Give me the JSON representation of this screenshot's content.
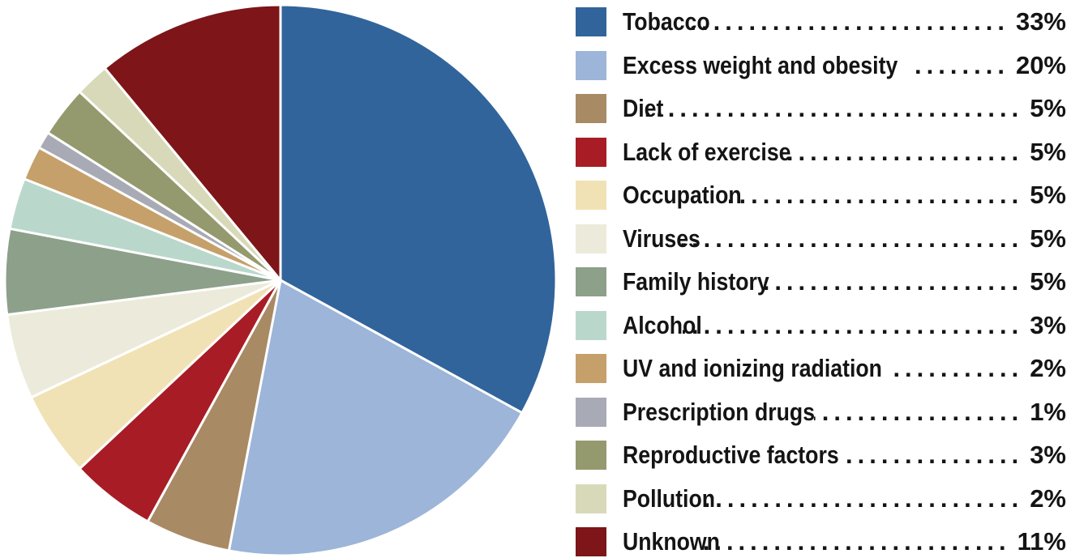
{
  "chart_data": {
    "type": "pie",
    "title": "",
    "legend_position": "right",
    "slices": [
      {
        "label": "Tobacco",
        "value": 33,
        "display": "33%",
        "color": "#31649b"
      },
      {
        "label": "Excess weight and obesity",
        "value": 20,
        "display": "20%",
        "color": "#9cb5d8"
      },
      {
        "label": "Diet",
        "value": 5,
        "display": "5%",
        "color": "#a88a64"
      },
      {
        "label": "Lack of exercise",
        "value": 5,
        "display": "5%",
        "color": "#a81c26"
      },
      {
        "label": "Occupation",
        "value": 5,
        "display": "5%",
        "color": "#f1e2b5"
      },
      {
        "label": "Viruses",
        "value": 5,
        "display": "5%",
        "color": "#ecebdb"
      },
      {
        "label": "Family history",
        "value": 5,
        "display": "5%",
        "color": "#8da08a"
      },
      {
        "label": "Alcohol",
        "value": 3,
        "display": "3%",
        "color": "#b9d8cb"
      },
      {
        "label": "UV and ionizing radiation",
        "value": 2,
        "display": "2%",
        "color": "#c6a06a"
      },
      {
        "label": "Prescription drugs",
        "value": 1,
        "display": "1%",
        "color": "#a8aab5"
      },
      {
        "label": "Reproductive factors",
        "value": 3,
        "display": "3%",
        "color": "#959a6e"
      },
      {
        "label": "Pollution",
        "value": 2,
        "display": "2%",
        "color": "#d8d9b9"
      },
      {
        "label": "Unknown",
        "value": 11,
        "display": "11%",
        "color": "#7d1519"
      }
    ]
  }
}
